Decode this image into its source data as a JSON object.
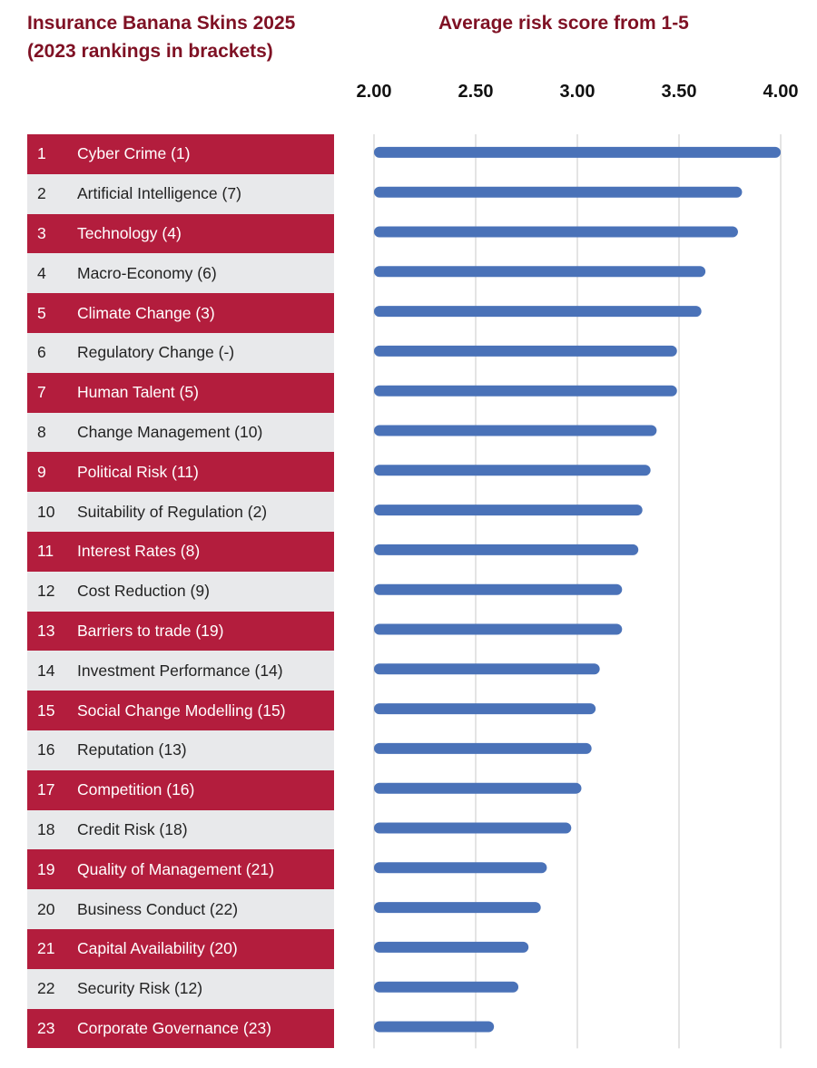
{
  "title_line1": "Insurance Banana Skins 2025",
  "title_line2": "(2023 rankings in brackets)",
  "chart_data": {
    "type": "bar",
    "orientation": "horizontal",
    "title": "Average risk score from 1-5",
    "xlim": [
      2.0,
      4.0
    ],
    "ticks": [
      "2.00",
      "2.50",
      "3.00",
      "3.50",
      "4.00"
    ],
    "tick_values": [
      2.0,
      2.5,
      3.0,
      3.5,
      4.0
    ],
    "grid": true,
    "series": [
      {
        "name": "Average risk score",
        "color": "#4a72b8",
        "values": [
          4.0,
          3.81,
          3.79,
          3.63,
          3.61,
          3.49,
          3.49,
          3.39,
          3.36,
          3.32,
          3.3,
          3.22,
          3.22,
          3.11,
          3.09,
          3.07,
          3.02,
          2.97,
          2.85,
          2.82,
          2.76,
          2.71,
          2.59
        ]
      }
    ],
    "rows": [
      {
        "rank": "1",
        "label": "Cyber Crime (1)"
      },
      {
        "rank": "2",
        "label": "Artificial Intelligence (7)"
      },
      {
        "rank": "3",
        "label": "Technology (4)"
      },
      {
        "rank": "4",
        "label": "Macro-Economy (6)"
      },
      {
        "rank": "5",
        "label": "Climate Change (3)"
      },
      {
        "rank": "6",
        "label": "Regulatory Change (-)"
      },
      {
        "rank": "7",
        "label": "Human Talent (5)"
      },
      {
        "rank": "8",
        "label": "Change Management (10)"
      },
      {
        "rank": "9",
        "label": "Political Risk (11)"
      },
      {
        "rank": "10",
        "label": "Suitability of Regulation (2)"
      },
      {
        "rank": "11",
        "label": "Interest Rates (8)"
      },
      {
        "rank": "12",
        "label": "Cost Reduction (9)"
      },
      {
        "rank": "13",
        "label": "Barriers to trade (19)"
      },
      {
        "rank": "14",
        "label": "Investment Performance (14)"
      },
      {
        "rank": "15",
        "label": "Social Change Modelling (15)"
      },
      {
        "rank": "16",
        "label": "Reputation (13)"
      },
      {
        "rank": "17",
        "label": "Competition (16)"
      },
      {
        "rank": "18",
        "label": "Credit Risk (18)"
      },
      {
        "rank": "19",
        "label": "Quality of Management (21)"
      },
      {
        "rank": "20",
        "label": "Business Conduct (22)"
      },
      {
        "rank": "21",
        "label": "Capital Availability (20)"
      },
      {
        "rank": "22",
        "label": "Security Risk (12)"
      },
      {
        "rank": "23",
        "label": "Corporate Governance (23)"
      }
    ],
    "colors": {
      "title": "#7f1124",
      "row_highlight": "#b31d3d",
      "row_plain": "#e8e9eb",
      "gridline": "#c8c8c8"
    }
  }
}
